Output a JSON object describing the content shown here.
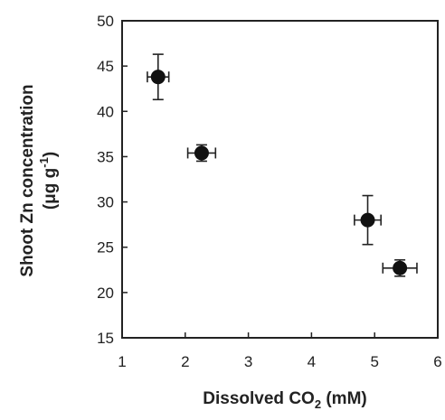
{
  "chart_data": {
    "type": "scatter",
    "title": "",
    "xlabel": {
      "pre": "Dissolved CO",
      "sub": "2",
      "post": " (mM)"
    },
    "ylabel": {
      "line1": "Shoot Zn concentration",
      "line2_pre": "(μg g",
      "line2_sup": "-1",
      "line2_post": ")"
    },
    "xlim": [
      1,
      6
    ],
    "ylim": [
      15,
      50
    ],
    "xticks": [
      1,
      2,
      3,
      4,
      5,
      6
    ],
    "yticks": [
      15,
      20,
      25,
      30,
      35,
      40,
      45,
      50
    ],
    "grid": false,
    "points": [
      {
        "x": 1.57,
        "y": 43.8,
        "xerr": 0.17,
        "yerr": 2.5
      },
      {
        "x": 2.26,
        "y": 35.4,
        "xerr": 0.22,
        "yerr": 0.9
      },
      {
        "x": 4.89,
        "y": 28.0,
        "xerr": 0.21,
        "yerr": 2.7
      },
      {
        "x": 5.4,
        "y": 22.7,
        "xerr": 0.27,
        "yerr": 0.9
      }
    ],
    "colors": {
      "marker": "#111111",
      "axis": "#222222"
    }
  }
}
